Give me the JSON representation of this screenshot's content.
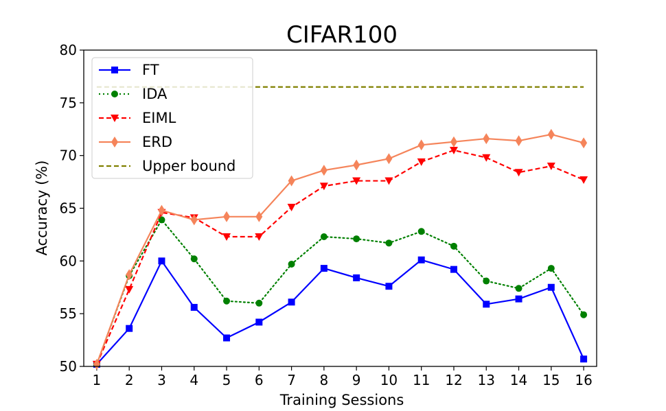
{
  "chart_data": {
    "type": "line",
    "title": "CIFAR100",
    "xlabel": "Training Sessions",
    "ylabel": "Accuracy (%)",
    "x": [
      1,
      2,
      3,
      4,
      5,
      6,
      7,
      8,
      9,
      10,
      11,
      12,
      13,
      14,
      15,
      16
    ],
    "xlim": [
      0.6,
      16.4
    ],
    "ylim": [
      50,
      80
    ],
    "yticks": [
      50,
      55,
      60,
      65,
      70,
      75,
      80
    ],
    "legend_position": "top-left",
    "series": [
      {
        "name": "FT",
        "color": "#0000ff",
        "dash": "solid",
        "marker": "square",
        "values": [
          50.2,
          53.6,
          60.0,
          55.6,
          52.7,
          54.2,
          56.1,
          59.3,
          58.4,
          57.6,
          60.1,
          59.2,
          55.9,
          56.4,
          57.5,
          50.7
        ]
      },
      {
        "name": "IDA",
        "color": "#008000",
        "dash": "dotted",
        "marker": "circle",
        "values": [
          50.2,
          58.6,
          63.9,
          60.2,
          56.2,
          56.0,
          59.7,
          62.3,
          62.1,
          61.7,
          62.8,
          61.4,
          58.1,
          57.4,
          59.3,
          54.9
        ]
      },
      {
        "name": "EIML",
        "color": "#ff0000",
        "dash": "dashed",
        "marker": "triangle-down",
        "values": [
          50.2,
          57.3,
          64.6,
          64.1,
          62.3,
          62.3,
          65.1,
          67.1,
          67.6,
          67.6,
          69.4,
          70.5,
          69.8,
          68.4,
          69.0,
          67.7
        ]
      },
      {
        "name": "ERD",
        "color": "#f5845a",
        "dash": "solid",
        "marker": "thin-diamond",
        "values": [
          50.2,
          58.7,
          64.8,
          63.9,
          64.2,
          64.2,
          67.6,
          68.6,
          69.1,
          69.7,
          71.0,
          71.3,
          71.6,
          71.4,
          72.0,
          71.2
        ]
      },
      {
        "name": "Upper bound",
        "color": "#808000",
        "dash": "dashed",
        "marker": "none",
        "values": [
          76.5,
          76.5,
          76.5,
          76.5,
          76.5,
          76.5,
          76.5,
          76.5,
          76.5,
          76.5,
          76.5,
          76.5,
          76.5,
          76.5,
          76.5,
          76.5
        ]
      }
    ]
  }
}
